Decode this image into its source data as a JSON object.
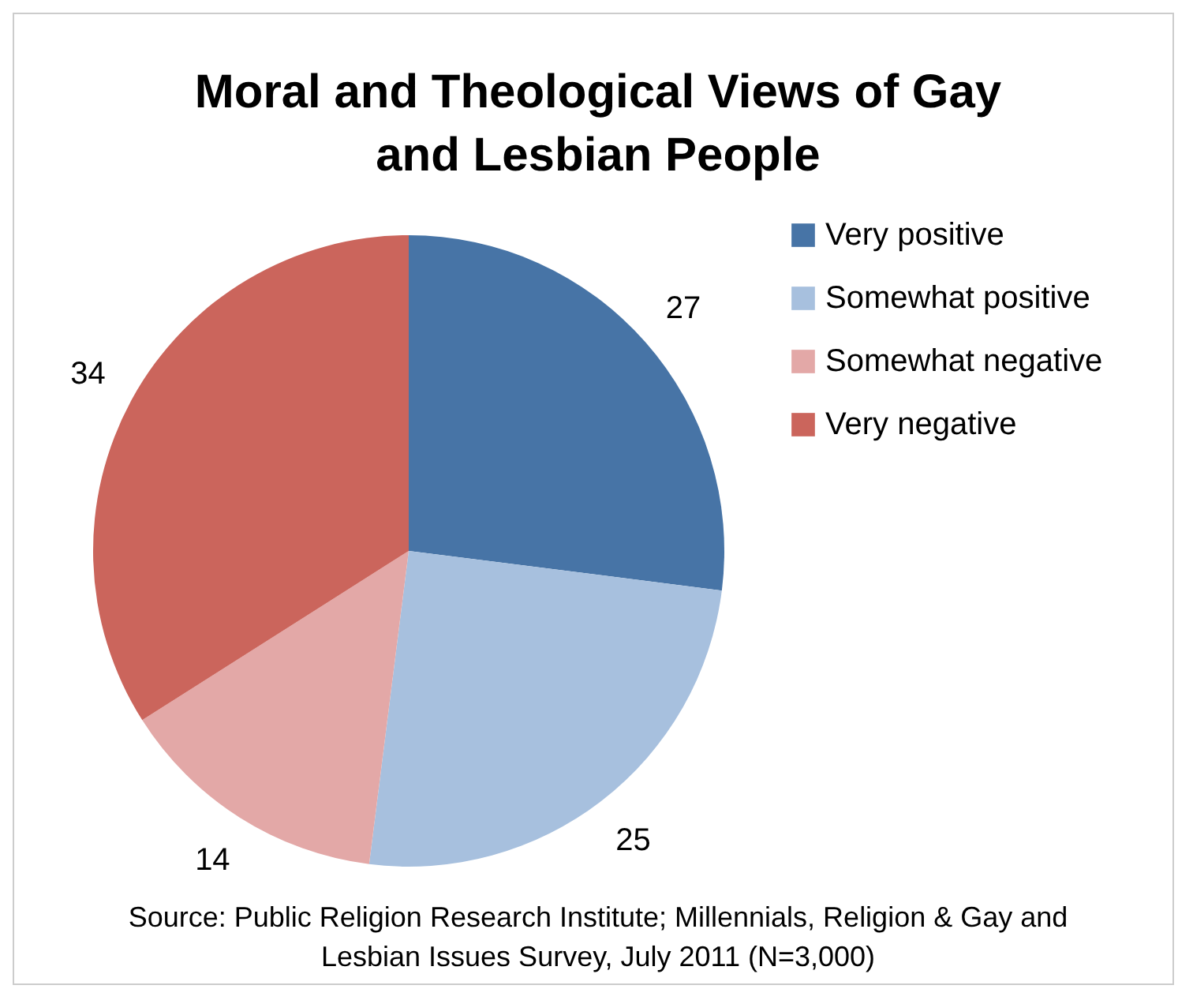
{
  "chart_data": {
    "type": "pie",
    "title": "Moral and Theological Views of Gay and Lesbian People",
    "categories": [
      "Very positive",
      "Somewhat positive",
      "Somewhat negative",
      "Very negative"
    ],
    "values": [
      27,
      25,
      14,
      34
    ],
    "colors": [
      "#4774a6",
      "#a7c0de",
      "#e3a8a7",
      "#cb655c"
    ],
    "data_labels": true,
    "legend": "right",
    "annotations": [
      "Source: Public Religion Research Institute; Millennials, Religion & Gay and Lesbian Issues Survey, July 2011 (N=3,000)"
    ]
  }
}
